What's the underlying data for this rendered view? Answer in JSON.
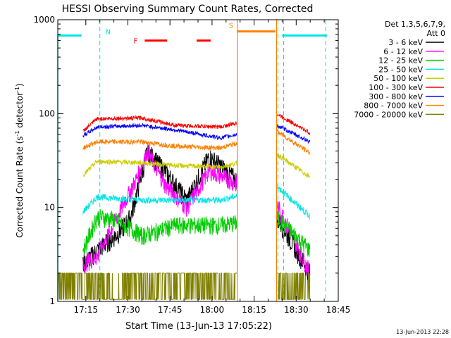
{
  "chart_data": {
    "type": "line",
    "title": "HESSI Observing Summary Count Rates, Corrected",
    "xlabel": "Start Time (13-Jun-13 17:05:22)",
    "ylabel": "Corrected Count Rate (s",
    "ylabel_sup1": "-1",
    "ylabel_mid": " detector",
    "ylabel_sup2": "-1",
    "ylabel_end": ")",
    "y_scale": "log",
    "ylim": [
      1,
      1000
    ],
    "y_ticks": [
      "1",
      "10",
      "100",
      "1000"
    ],
    "x_ticks": [
      "17:15",
      "17:30",
      "17:45",
      "18:00",
      "18:15",
      "18:30",
      "18:45"
    ],
    "footer": "13-Jun-2013 22:28",
    "legend": {
      "header1": "Det 1,3,5,6,7,9,",
      "header2": "Att 0",
      "entries": [
        {
          "label": "3 - 6 keV",
          "color": "#000000"
        },
        {
          "label": "6 - 12 keV",
          "color": "#ff00ff"
        },
        {
          "label": "12 - 25 keV",
          "color": "#00cc00"
        },
        {
          "label": "25 - 50 keV",
          "color": "#00e5e5"
        },
        {
          "label": "50 - 100 keV",
          "color": "#cccc00"
        },
        {
          "label": "100 - 300 keV",
          "color": "#ff0000"
        },
        {
          "label": "300 - 800 keV",
          "color": "#0000ff"
        },
        {
          "label": "800 - 7000 keV",
          "color": "#ff8000"
        },
        {
          "label": "7000 - 20000 keV",
          "color": "#808000"
        }
      ]
    },
    "flag_labels": {
      "N": "N",
      "F": "F",
      "S": "S"
    },
    "series_values": {
      "note_units": "minutes after 17:05:22, counts s^-1 detector^-1",
      "gap": [
        64,
        78
      ],
      "red": [
        [
          9,
          65
        ],
        [
          14,
          88
        ],
        [
          30,
          90
        ],
        [
          42,
          75
        ],
        [
          58,
          72
        ],
        [
          78,
          100
        ],
        [
          90,
          62
        ]
      ],
      "blue": [
        [
          9,
          58
        ],
        [
          14,
          72
        ],
        [
          30,
          75
        ],
        [
          42,
          67
        ],
        [
          58,
          55
        ],
        [
          78,
          75
        ],
        [
          90,
          50
        ]
      ],
      "orange": [
        [
          9,
          43
        ],
        [
          14,
          50
        ],
        [
          30,
          50
        ],
        [
          42,
          45
        ],
        [
          58,
          43
        ],
        [
          78,
          65
        ],
        [
          90,
          38
        ]
      ],
      "yellow": [
        [
          9,
          22
        ],
        [
          14,
          31
        ],
        [
          30,
          30
        ],
        [
          42,
          28
        ],
        [
          58,
          27
        ],
        [
          78,
          37
        ],
        [
          90,
          21
        ]
      ],
      "cyan": [
        [
          9,
          9
        ],
        [
          14,
          13
        ],
        [
          30,
          12
        ],
        [
          42,
          12
        ],
        [
          58,
          12
        ],
        [
          78,
          17
        ],
        [
          90,
          8
        ]
      ],
      "green": [
        [
          9,
          3.5
        ],
        [
          14,
          8
        ],
        [
          20,
          7.5
        ],
        [
          26,
          6
        ],
        [
          30,
          5
        ],
        [
          42,
          6.5
        ],
        [
          58,
          6.5
        ],
        [
          78,
          8
        ],
        [
          90,
          3.5
        ]
      ],
      "magenta": [
        [
          9,
          2.5
        ],
        [
          14,
          3
        ],
        [
          22,
          9
        ],
        [
          28,
          20
        ],
        [
          32,
          40
        ],
        [
          38,
          18
        ],
        [
          46,
          10
        ],
        [
          54,
          25
        ],
        [
          58,
          22
        ],
        [
          78,
          11
        ],
        [
          90,
          2
        ]
      ],
      "black": [
        [
          9,
          2.5
        ],
        [
          14,
          3.5
        ],
        [
          22,
          5.5
        ],
        [
          26,
          8
        ],
        [
          32,
          40
        ],
        [
          38,
          25
        ],
        [
          46,
          12
        ],
        [
          54,
          35
        ],
        [
          58,
          28
        ],
        [
          78,
          8
        ],
        [
          90,
          2
        ]
      ],
      "olive": [
        [
          0,
          1.2
        ],
        [
          90,
          1.2
        ]
      ]
    }
  }
}
